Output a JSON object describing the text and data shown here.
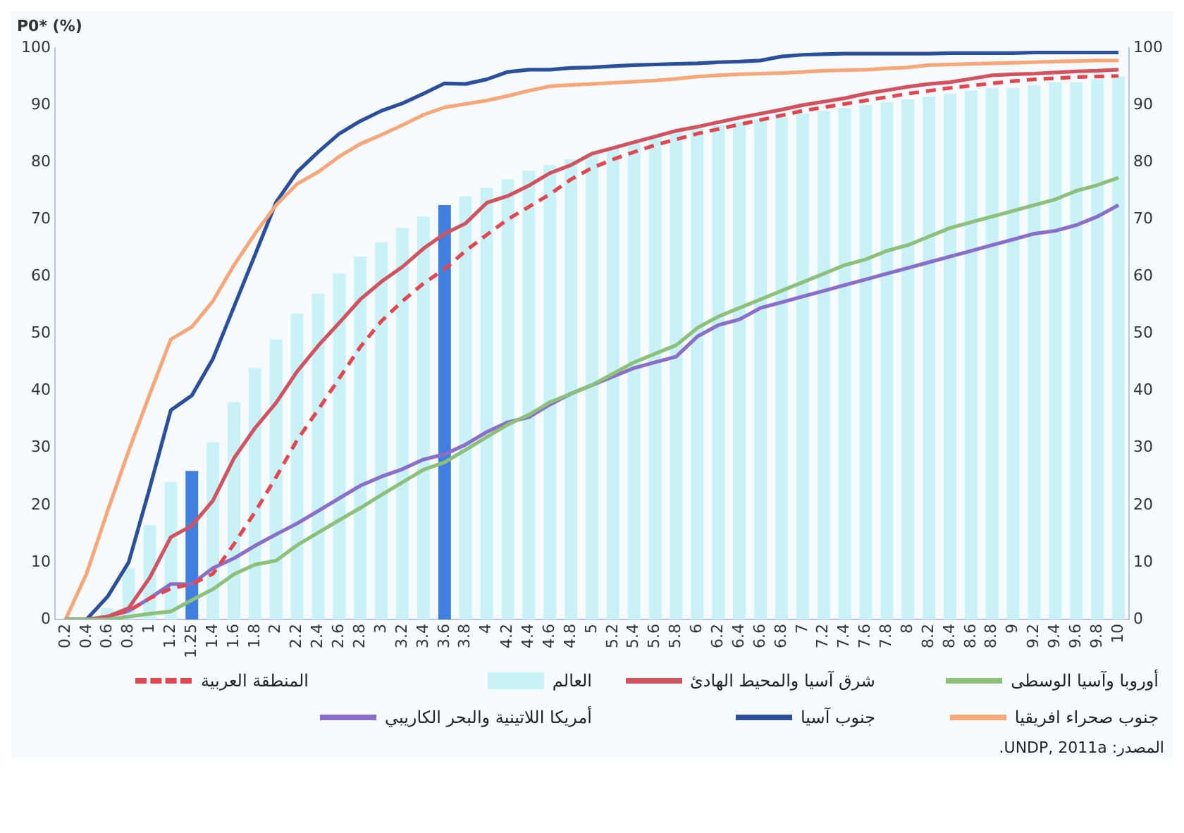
{
  "chart_data": {
    "type": "bar",
    "ylabel": "P0* (%)",
    "legend": "bottom",
    "marker": "none",
    "categories": [
      "0.2",
      "0.4",
      "0.6",
      "0.8",
      "1",
      "1.2",
      "1.25",
      "1.4",
      "1.6",
      "1.8",
      "2",
      "2.2",
      "2.4",
      "2.6",
      "2.8",
      "3",
      "3.2",
      "3.4",
      "3.6",
      "3.8",
      "4",
      "4.2",
      "4.4",
      "4.6",
      "4.8",
      "5",
      "5.2",
      "5.4",
      "5.6",
      "5.8",
      "6",
      "6.2",
      "6.4",
      "6.6",
      "6.8",
      "7",
      "7.2",
      "7.4",
      "7.6",
      "7.8",
      "8",
      "8.2",
      "8.4",
      "8.6",
      "8.8",
      "9",
      "9.2",
      "9.4",
      "9.6",
      "9.8",
      "10"
    ],
    "ylim": [
      0,
      100
    ],
    "yticks": [
      0,
      10,
      20,
      30,
      40,
      50,
      60,
      70,
      80,
      90,
      100
    ],
    "y2lim": [
      0,
      100
    ],
    "y2ticks": [
      0,
      10,
      20,
      30,
      40,
      50,
      60,
      70,
      80,
      90,
      100
    ],
    "series": [
      {
        "name": "أوروبا وآسيا الوسطى",
        "type": "line",
        "color": "#8dc07a",
        "values": [
          0,
          0,
          0,
          0.5,
          1,
          1.4,
          3.4,
          5.3,
          7.9,
          9.6,
          10.3,
          13,
          15.2,
          17.4,
          19.5,
          21.8,
          24,
          26.2,
          27.5,
          29.7,
          31.9,
          34.1,
          35.8,
          38,
          39.5,
          41,
          43,
          45,
          46.5,
          48,
          51,
          53,
          54.5,
          56,
          57.5,
          59,
          60.5,
          62,
          63,
          64.5,
          65.5,
          67,
          68.5,
          69.5,
          70.5,
          71.5,
          72.5,
          73.5,
          75,
          76,
          77.3
        ]
      },
      {
        "name": "شرق آسيا والمحيط الهادئ",
        "type": "line",
        "color": "#d0535f",
        "values": [
          0,
          0,
          0.5,
          2,
          7.3,
          14.4,
          16.4,
          20.8,
          28.2,
          33.5,
          37.9,
          43.4,
          47.9,
          51.9,
          56,
          59.1,
          61.7,
          64.9,
          67.5,
          69.3,
          72.9,
          74.1,
          75.9,
          78.1,
          79.5,
          81.5,
          82.5,
          83.5,
          84.5,
          85.5,
          86.2,
          87,
          87.8,
          88.5,
          89.2,
          90,
          90.6,
          91.2,
          92,
          92.6,
          93.2,
          93.7,
          94,
          94.6,
          95.2,
          95.4,
          95.5,
          95.7,
          95.9,
          96,
          96.2
        ]
      },
      {
        "name": "العالم",
        "color": "#c9f2f8",
        "colors": [
          "#c9f2f8",
          "#c9f2f8",
          "#c9f2f8",
          "#c9f2f8",
          "#c9f2f8",
          "#c9f2f8",
          "#3f7fe0",
          "#c9f2f8",
          "#c9f2f8",
          "#c9f2f8",
          "#c9f2f8",
          "#c9f2f8",
          "#c9f2f8",
          "#c9f2f8",
          "#c9f2f8",
          "#c9f2f8",
          "#c9f2f8",
          "#c9f2f8",
          "#3f7fe0",
          "#c9f2f8",
          "#c9f2f8",
          "#c9f2f8",
          "#c9f2f8",
          "#c9f2f8",
          "#c9f2f8",
          "#c9f2f8",
          "#c9f2f8",
          "#c9f2f8",
          "#c9f2f8",
          "#c9f2f8",
          "#c9f2f8",
          "#c9f2f8",
          "#c9f2f8",
          "#c9f2f8",
          "#c9f2f8",
          "#c9f2f8",
          "#c9f2f8",
          "#c9f2f8",
          "#c9f2f8",
          "#c9f2f8",
          "#c9f2f8",
          "#c9f2f8",
          "#c9f2f8",
          "#c9f2f8",
          "#c9f2f8",
          "#c9f2f8",
          "#c9f2f8",
          "#c9f2f8",
          "#c9f2f8",
          "#c9f2f8",
          "#c9f2f8"
        ],
        "values": [
          0,
          null,
          2,
          9,
          16.5,
          24,
          26,
          31,
          38,
          44,
          49,
          53.5,
          57,
          60.5,
          63.5,
          66,
          68.5,
          70.5,
          72.5,
          74,
          75.5,
          77,
          78.5,
          79.5,
          80.5,
          81.5,
          82.5,
          83.5,
          84.5,
          85.5,
          86,
          86.5,
          87,
          87.5,
          88,
          88.5,
          89,
          89.5,
          90,
          90.5,
          91,
          91.5,
          92,
          92.5,
          93,
          93,
          93.5,
          94,
          94,
          94.5,
          95
        ]
      },
      {
        "name": "المنطقة العربية",
        "type": "line",
        "line_style": "dashed",
        "color": "#e0474f",
        "values": [
          0,
          0,
          0.5,
          1.5,
          3.7,
          5.4,
          6.2,
          8,
          13.2,
          18.8,
          24.9,
          31.4,
          36.7,
          42.2,
          47.7,
          52.2,
          55.7,
          58.8,
          61.3,
          64.5,
          67.3,
          70,
          72.2,
          74.4,
          77,
          79,
          80.5,
          81.8,
          83,
          84,
          85,
          85.8,
          86.6,
          87.4,
          88.2,
          89,
          89.6,
          90.2,
          90.8,
          91.4,
          92,
          92.5,
          93,
          93.4,
          93.8,
          94.2,
          94.5,
          94.7,
          94.9,
          95,
          95.1
        ]
      },
      {
        "name": "جنوب صحراء افريقيا",
        "type": "line",
        "color": "#f7a77a",
        "values": [
          0,
          8,
          19,
          29.5,
          39.4,
          49,
          51.2,
          55.7,
          62,
          67.5,
          72.5,
          76.2,
          78.3,
          81,
          83.2,
          84.8,
          86.5,
          88.3,
          89.6,
          90.2,
          90.8,
          91.6,
          92.5,
          93.3,
          93.5,
          93.7,
          93.9,
          94.1,
          94.3,
          94.6,
          95,
          95.2,
          95.4,
          95.5,
          95.6,
          95.8,
          96,
          96.1,
          96.2,
          96.4,
          96.6,
          97,
          97.1,
          97.2,
          97.3,
          97.4,
          97.5,
          97.6,
          97.7,
          97.8,
          97.8
        ]
      },
      {
        "name": "جنوب آسيا",
        "type": "line",
        "color": "#2b4f9a",
        "values": [
          0,
          0,
          4,
          10,
          23,
          36.6,
          39.2,
          45.6,
          54.7,
          63.8,
          73,
          78.3,
          81.8,
          85,
          87.2,
          89,
          90.3,
          92,
          93.8,
          93.7,
          94.5,
          95.8,
          96.2,
          96.2,
          96.5,
          96.6,
          96.8,
          97,
          97.1,
          97.2,
          97.3,
          97.5,
          97.6,
          97.8,
          98.5,
          98.8,
          98.9,
          99,
          99,
          99,
          99,
          99,
          99.1,
          99.1,
          99.1,
          99.1,
          99.2,
          99.2,
          99.2,
          99.2,
          99.2
        ]
      },
      {
        "name": "أمريكا اللاتينية والبحر الكاريبي",
        "type": "line",
        "color": "#8a6fc8",
        "values": [
          0,
          0,
          0.5,
          1.5,
          3.7,
          6.2,
          6.2,
          9,
          10.7,
          12.9,
          14.9,
          16.8,
          19,
          21.2,
          23.4,
          25,
          26.3,
          28,
          28.9,
          30.6,
          32.8,
          34.5,
          35.4,
          37.6,
          39.5,
          41,
          42.5,
          44,
          45,
          46,
          49.5,
          51.5,
          52.5,
          54.5,
          55.5,
          56.5,
          57.5,
          58.5,
          59.5,
          60.5,
          61.5,
          62.5,
          63.5,
          64.5,
          65.5,
          66.5,
          67.5,
          68,
          69,
          70.5,
          72.5
        ]
      }
    ],
    "annotations": [
      "المصدر: UNDP, 2011a."
    ]
  }
}
